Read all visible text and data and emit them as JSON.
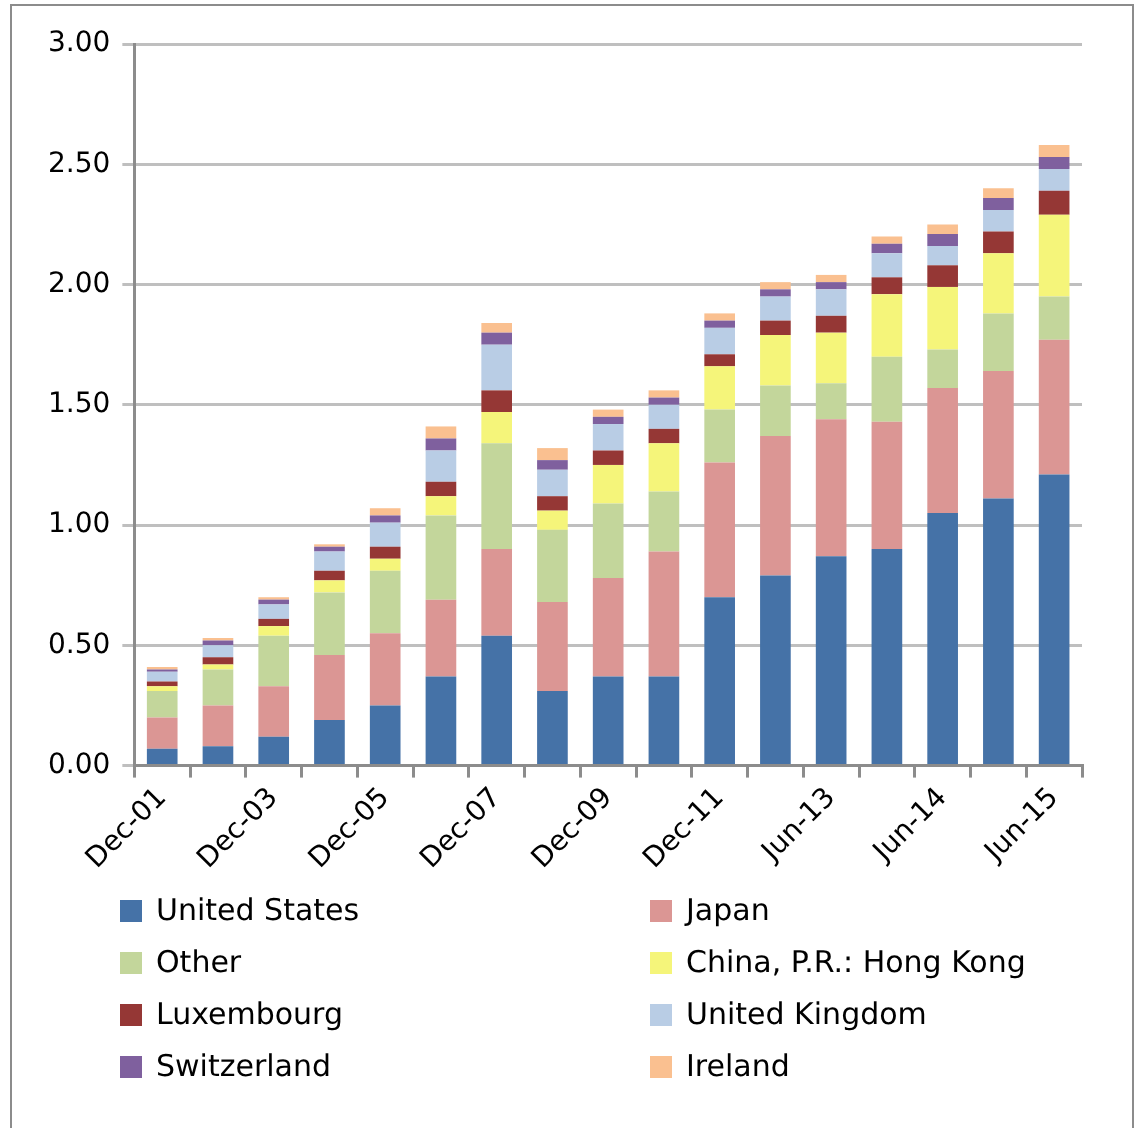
{
  "chart_data": {
    "type": "bar",
    "stacked": true,
    "categories": [
      "Dec-01",
      null,
      "Dec-03",
      null,
      "Dec-05",
      null,
      "Dec-07",
      null,
      "Dec-09",
      null,
      "Dec-11",
      null,
      "Jun-13",
      null,
      "Jun-14",
      null,
      "Jun-15"
    ],
    "series": [
      {
        "name": "United States",
        "color": "#4572a7",
        "values": [
          0.07,
          0.08,
          0.12,
          0.19,
          0.25,
          0.37,
          0.54,
          0.31,
          0.37,
          0.37,
          0.7,
          0.79,
          0.87,
          0.9,
          1.05,
          1.11,
          1.21
        ]
      },
      {
        "name": "Japan",
        "color": "#db9694",
        "values": [
          0.13,
          0.17,
          0.21,
          0.27,
          0.3,
          0.32,
          0.36,
          0.37,
          0.41,
          0.52,
          0.56,
          0.58,
          0.57,
          0.53,
          0.52,
          0.53,
          0.56
        ]
      },
      {
        "name": "Other",
        "color": "#c3d69b",
        "values": [
          0.11,
          0.15,
          0.21,
          0.26,
          0.26,
          0.35,
          0.44,
          0.3,
          0.31,
          0.25,
          0.22,
          0.21,
          0.15,
          0.27,
          0.16,
          0.24,
          0.18
        ]
      },
      {
        "name": "China, P.R.: Hong Kong",
        "color": "#f5f57a",
        "values": [
          0.02,
          0.02,
          0.04,
          0.05,
          0.05,
          0.08,
          0.13,
          0.08,
          0.16,
          0.2,
          0.18,
          0.21,
          0.21,
          0.26,
          0.26,
          0.25,
          0.34
        ]
      },
      {
        "name": "Luxembourg",
        "color": "#953735",
        "values": [
          0.02,
          0.03,
          0.03,
          0.04,
          0.05,
          0.06,
          0.09,
          0.06,
          0.06,
          0.06,
          0.05,
          0.06,
          0.07,
          0.07,
          0.09,
          0.09,
          0.1
        ]
      },
      {
        "name": "United Kingdom",
        "color": "#b9cde5",
        "values": [
          0.04,
          0.05,
          0.06,
          0.08,
          0.1,
          0.13,
          0.19,
          0.11,
          0.11,
          0.1,
          0.11,
          0.1,
          0.11,
          0.1,
          0.08,
          0.09,
          0.09
        ]
      },
      {
        "name": "Switzerland",
        "color": "#7f609e",
        "values": [
          0.01,
          0.02,
          0.02,
          0.02,
          0.03,
          0.05,
          0.05,
          0.04,
          0.03,
          0.03,
          0.03,
          0.03,
          0.03,
          0.04,
          0.05,
          0.05,
          0.05
        ]
      },
      {
        "name": "Ireland",
        "color": "#fac090",
        "values": [
          0.01,
          0.01,
          0.01,
          0.01,
          0.03,
          0.05,
          0.04,
          0.05,
          0.03,
          0.03,
          0.03,
          0.03,
          0.03,
          0.03,
          0.04,
          0.04,
          0.05
        ]
      }
    ],
    "ylim": [
      0,
      3
    ],
    "yticks": [
      {
        "value": 0,
        "label": "0.00"
      },
      {
        "value": 0.5,
        "label": "0.50"
      },
      {
        "value": 1,
        "label": "1.00"
      },
      {
        "value": 1.5,
        "label": "1.50"
      },
      {
        "value": 2,
        "label": "2.00"
      },
      {
        "value": 2.5,
        "label": "2.50"
      },
      {
        "value": 3,
        "label": "3.00"
      }
    ],
    "grid": "y",
    "legend": "bottom"
  }
}
